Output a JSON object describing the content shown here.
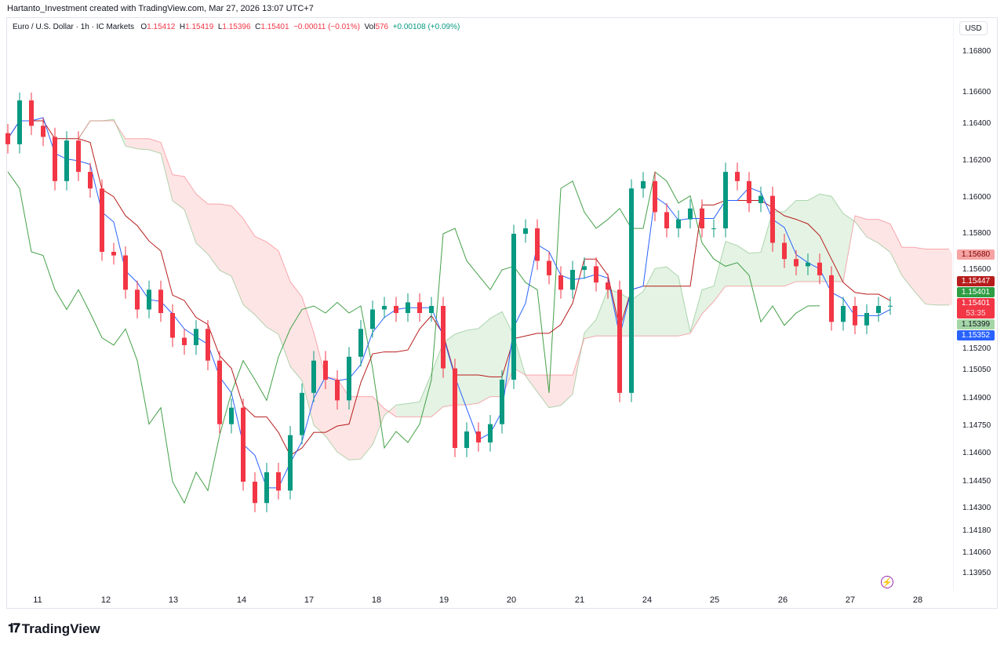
{
  "credit": "Hartanto_Investment created with TradingView.com, Mar 27, 2026 13:07 UTC+7",
  "legend": {
    "symbol": "Euro / U.S. Dollar · 1h · IC Markets",
    "o_label": "O",
    "o": "1.15412",
    "h_label": "H",
    "h": "1.15419",
    "l_label": "L",
    "l": "1.15396",
    "c_label": "C",
    "c": "1.15401",
    "change": "−0.00011 (−0.01%)",
    "vol_label": "Vol",
    "vol": "576",
    "indicator_change": "+0.00108 (+0.09%)"
  },
  "currency_button": "USD",
  "price_tags": {
    "span_b": "1.15680",
    "kijun": "1.15447",
    "span_a": "1.15401",
    "last_price": "1.15401",
    "countdown": "53:35",
    "chikou": "1.15399",
    "tenkan": "1.15352"
  },
  "colors": {
    "up": "#089981",
    "down": "#f23645",
    "tenkan": "#2962ff",
    "kijun": "#b71c1c",
    "chikou": "#43a047",
    "cloud_bull": "#a5d6a7",
    "cloud_bear": "#f7a9a9",
    "accent": "#9c27b0"
  },
  "brand": "TradingView",
  "chart_data": {
    "type": "candlestick",
    "indicator": "Ichimoku Cloud",
    "y_ticks": [
      "1.16800",
      "1.16600",
      "1.16400",
      "1.16200",
      "1.16000",
      "1.15800",
      "1.15600",
      "1.15200",
      "1.15050",
      "1.14900",
      "1.14750",
      "1.14600",
      "1.14450",
      "1.14300",
      "1.14180",
      "1.14060",
      "1.13950"
    ],
    "x_ticks": [
      "11",
      "12",
      "13",
      "14",
      "17",
      "18",
      "19",
      "20",
      "21",
      "24",
      "25",
      "26",
      "27",
      "28"
    ],
    "closes": [
      1.1629,
      1.1655,
      1.1639,
      1.1633,
      1.1609,
      1.1631,
      1.1614,
      1.1605,
      1.157,
      1.1568,
      1.1549,
      1.1538,
      1.1549,
      1.1536,
      1.1522,
      1.1518,
      1.1527,
      1.151,
      1.1476,
      1.1485,
      1.1445,
      1.1433,
      1.145,
      1.144,
      1.147,
      1.1493,
      1.151,
      1.15,
      1.1489,
      1.1512,
      1.1527,
      1.1538,
      1.154,
      1.1536,
      1.1542,
      1.1536,
      1.154,
      1.1506,
      1.1463,
      1.1472,
      1.1466,
      1.1476,
      1.15,
      1.158,
      1.1583,
      1.1565,
      1.1557,
      1.1549,
      1.156,
      1.1562,
      1.1553,
      1.1549,
      1.1493,
      1.1605,
      1.1609,
      1.1592,
      1.1583,
      1.1588,
      1.1594,
      1.1583,
      1.1583,
      1.1614,
      1.1609,
      1.1597,
      1.1601,
      1.1575,
      1.1566,
      1.1562,
      1.1564,
      1.1557,
      1.1531,
      1.154,
      1.1529,
      1.1536,
      1.154,
      1.15401
    ]
  }
}
